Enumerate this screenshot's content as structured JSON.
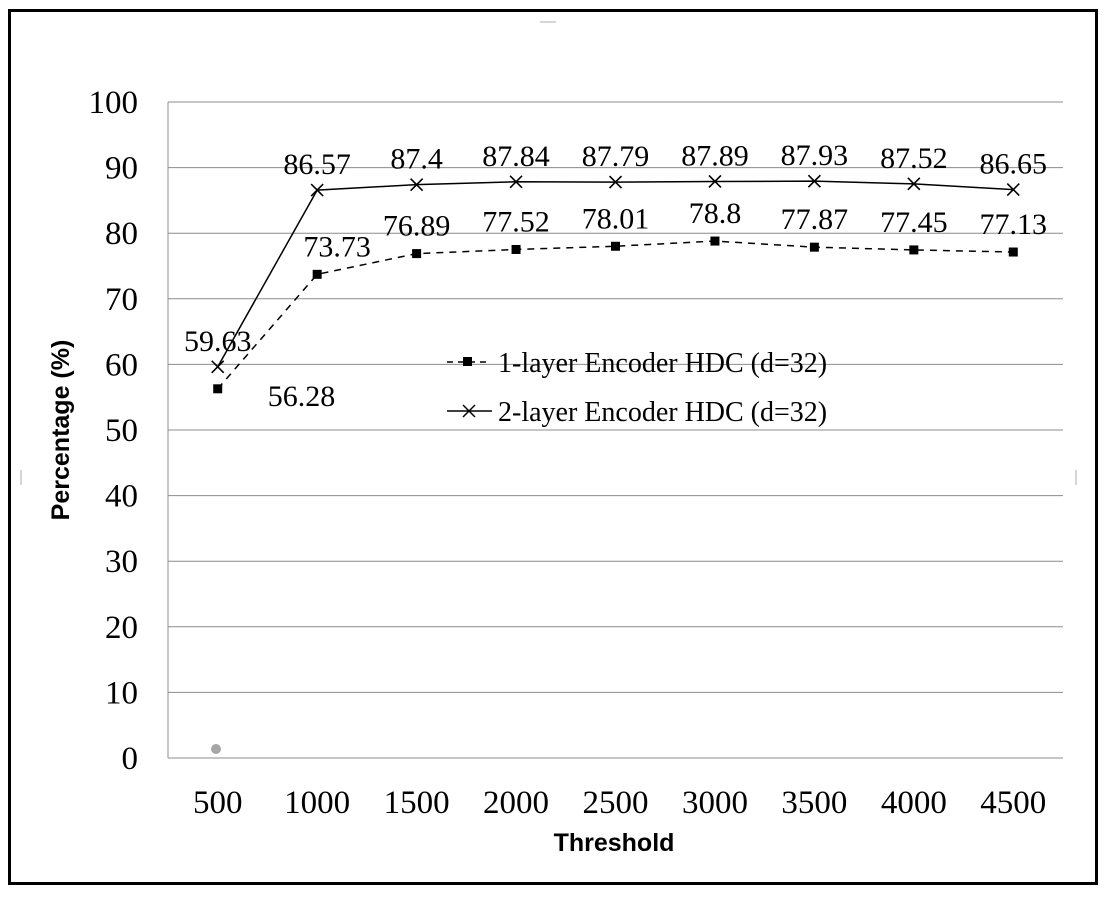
{
  "chart_data": {
    "type": "line",
    "xlabel": "Threshold",
    "ylabel": "Percentage (%)",
    "x": [
      "500",
      "1000",
      "1500",
      "2000",
      "2500",
      "3000",
      "3500",
      "4000",
      "4500"
    ],
    "yticks": [
      "0",
      "10",
      "20",
      "30",
      "40",
      "50",
      "60",
      "70",
      "80",
      "90",
      "100"
    ],
    "ylim": [
      0,
      100
    ],
    "grid": true,
    "legend_position": "center-left",
    "series": [
      {
        "name": "1-layer Encoder HDC (d=32)",
        "values": [
          56.28,
          73.73,
          76.89,
          77.52,
          78.01,
          78.8,
          77.87,
          77.45,
          77.13
        ],
        "labels": [
          "56.28",
          "73.73",
          "76.89",
          "77.52",
          "78.01",
          "78.8",
          "77.87",
          "77.45",
          "77.13"
        ],
        "line_style": "dashed",
        "marker": "square",
        "color": "#000000"
      },
      {
        "name": "2-layer Encoder HDC (d=32)",
        "values": [
          59.63,
          86.57,
          87.4,
          87.84,
          87.79,
          87.89,
          87.93,
          87.52,
          86.65
        ],
        "labels": [
          "59.63",
          "86.57",
          "87.4",
          "87.84",
          "87.79",
          "87.89",
          "87.93",
          "87.52",
          "86.65"
        ],
        "line_style": "solid",
        "marker": "x",
        "color": "#000000"
      }
    ],
    "grid_color": "#8c8c8c"
  }
}
